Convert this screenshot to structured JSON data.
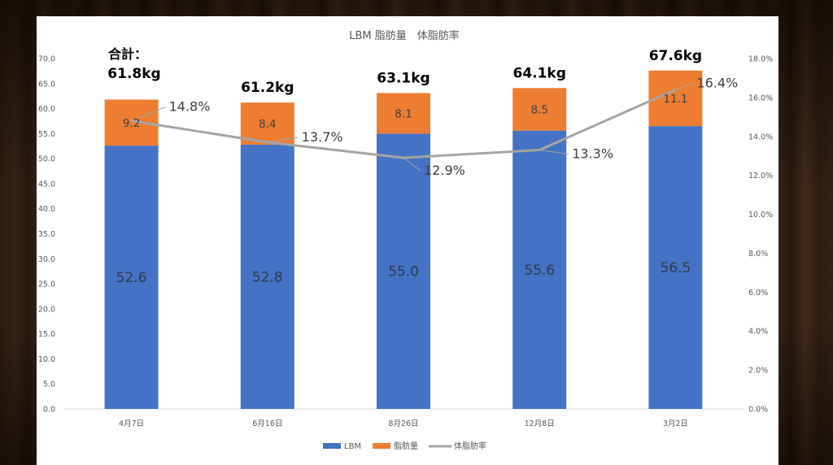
{
  "chart_data": {
    "type": "bar",
    "stacked": true,
    "title": "LBM 脂肪量　体脂肪率",
    "categories": [
      "4月7日",
      "6月16日",
      "8月26日",
      "12月8日",
      "3月2日"
    ],
    "series": [
      {
        "name": "LBM",
        "type": "bar",
        "axis": "left",
        "color": "#4472c4",
        "values": [
          52.6,
          52.8,
          55.0,
          55.6,
          56.5
        ],
        "labels": [
          "52.6",
          "52.8",
          "55.0",
          "55.6",
          "56.5"
        ]
      },
      {
        "name": "脂肪量",
        "type": "bar",
        "axis": "left",
        "color": "#ed7d31",
        "values": [
          9.2,
          8.4,
          8.1,
          8.5,
          11.1
        ],
        "labels": [
          "9.2",
          "8.4",
          "8.1",
          "8.5",
          "11.1"
        ]
      },
      {
        "name": "体脂肪率",
        "type": "line",
        "axis": "right",
        "color": "#a5a5a5",
        "values": [
          14.8,
          13.7,
          12.9,
          13.3,
          16.4
        ],
        "labels": [
          "14.8%",
          "13.7%",
          "12.9%",
          "13.3%",
          "16.4%"
        ]
      }
    ],
    "totals": [
      "61.8kg",
      "61.2kg",
      "63.1kg",
      "64.1kg",
      "67.6kg"
    ],
    "total_prefix": "合計：",
    "ylim_left": [
      0,
      70
    ],
    "yticks_left": [
      "0.0",
      "5.0",
      "10.0",
      "15.0",
      "20.0",
      "25.0",
      "30.0",
      "35.0",
      "40.0",
      "45.0",
      "50.0",
      "55.0",
      "60.0",
      "65.0",
      "70.0"
    ],
    "ylim_right": [
      0,
      18
    ],
    "yticks_right": [
      "0.0%",
      "2.0%",
      "4.0%",
      "6.0%",
      "8.0%",
      "10.0%",
      "12.0%",
      "14.0%",
      "16.0%",
      "18.0%"
    ],
    "legend_position": "bottom",
    "grid": false
  }
}
